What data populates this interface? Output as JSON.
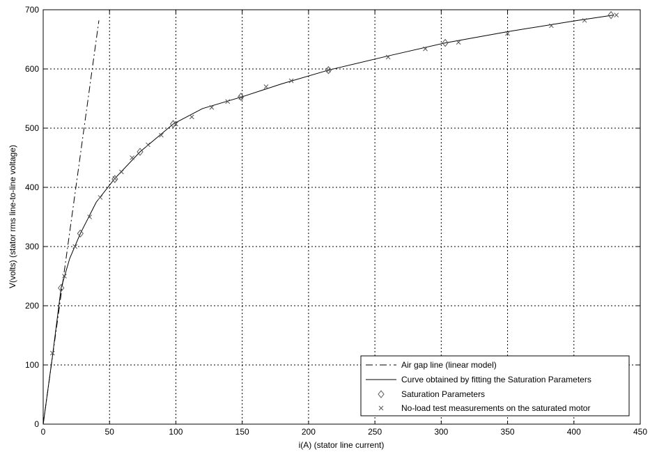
{
  "colors": {
    "background": "#ffffff",
    "axes": "#000000",
    "grid": "#000000",
    "series": "#000000",
    "markers": "#555555"
  },
  "chart_data": {
    "type": "line",
    "xlabel": "i(A) (stator line current)",
    "ylabel": "V(volts) (stator rms line-to-line voltage)",
    "xlim": [
      0,
      450
    ],
    "ylim": [
      0,
      700
    ],
    "xticks": [
      0,
      50,
      100,
      150,
      200,
      250,
      300,
      350,
      400,
      450
    ],
    "yticks": [
      0,
      100,
      200,
      300,
      400,
      500,
      600,
      700
    ],
    "xtick_labels": [
      "0",
      "50",
      "100",
      "150",
      "200",
      "250",
      "300",
      "350",
      "400",
      "450"
    ],
    "ytick_labels": [
      "0",
      "100",
      "200",
      "300",
      "400",
      "500",
      "600",
      "700"
    ],
    "grid": true,
    "legend_position": "bottom-right",
    "series": [
      {
        "name": "Air gap line (linear model)",
        "style": "dash-dot",
        "x": [
          0,
          42
        ],
        "y": [
          0,
          682
        ]
      },
      {
        "name": "Curve obtained by fitting the Saturation Parameters",
        "style": "solid",
        "x": [
          0,
          7,
          13.5,
          20,
          28,
          40,
          54,
          73,
          98,
          120,
          150,
          180,
          215,
          260,
          303,
          350,
          400,
          430
        ],
        "y": [
          0,
          115,
          230,
          280,
          322,
          375,
          415,
          460,
          507,
          533,
          553,
          575,
          598,
          622,
          644,
          663,
          681,
          691
        ]
      },
      {
        "name": "Saturation Parameters",
        "style": "diamond",
        "x": [
          13.5,
          28,
          54,
          73,
          98,
          149,
          215,
          303,
          428
        ],
        "y": [
          230,
          322,
          414,
          460,
          507,
          553,
          598,
          644,
          691
        ]
      },
      {
        "name": "No-load test measurements on the saturated motor",
        "style": "x",
        "x": [
          7,
          16,
          24,
          35,
          43,
          54,
          59,
          67,
          79,
          89,
          100,
          112,
          127,
          139,
          149,
          168,
          187,
          215,
          260,
          288,
          313,
          350,
          383,
          408,
          432
        ],
        "y": [
          120,
          250,
          300,
          350,
          383,
          415,
          426,
          450,
          472,
          488,
          507,
          519,
          535,
          545,
          552,
          570,
          580,
          598,
          620,
          634,
          645,
          660,
          673,
          682,
          691
        ]
      }
    ]
  }
}
